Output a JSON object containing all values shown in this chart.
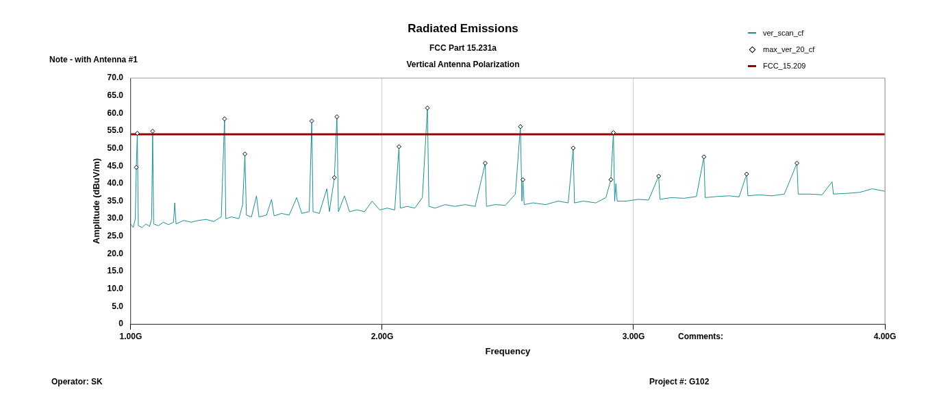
{
  "chart_data": {
    "type": "line",
    "title": "Radiated Emissions",
    "subtitle": "FCC Part 15.231a\nVertical Antenna Polarization",
    "xlabel": "Frequency",
    "ylabel": "Amplitude (dBuV/m)",
    "xlim": [
      1,
      4
    ],
    "xticks": [
      {
        "value": 1,
        "label": "1.00G"
      },
      {
        "value": 2,
        "label": "2.00G"
      },
      {
        "value": 3,
        "label": "3.00G"
      },
      {
        "value": 4,
        "label": "4.00G"
      }
    ],
    "ylim": [
      0,
      70
    ],
    "yticks": [
      0,
      {
        "value": 5,
        "label": "5.0"
      },
      {
        "value": 10,
        "label": "10.0"
      },
      {
        "value": 15,
        "label": "15.0"
      },
      {
        "value": 20,
        "label": "20.0"
      },
      {
        "value": 25,
        "label": "25.0"
      },
      {
        "value": 30,
        "label": "30.0"
      },
      {
        "value": 35,
        "label": "35.0"
      },
      {
        "value": 40,
        "label": "40.0"
      },
      {
        "value": 45,
        "label": "45.0"
      },
      {
        "value": 50,
        "label": "50.0"
      },
      {
        "value": 55,
        "label": "55.0"
      },
      {
        "value": 60,
        "label": "60.0"
      },
      {
        "value": 65,
        "label": "65.0"
      },
      {
        "value": 70,
        "label": "70.0"
      }
    ],
    "grid": "x",
    "legend": "top right",
    "series": [
      {
        "name": "ver_scan_cf",
        "color": "#1a9090",
        "x": [
          1.0,
          1.01,
          1.018,
          1.022,
          1.026,
          1.03,
          1.045,
          1.06,
          1.075,
          1.083,
          1.087,
          1.091,
          1.11,
          1.13,
          1.15,
          1.17,
          1.175,
          1.18,
          1.21,
          1.24,
          1.27,
          1.3,
          1.33,
          1.36,
          1.373,
          1.378,
          1.4,
          1.43,
          1.445,
          1.454,
          1.46,
          1.48,
          1.5,
          1.51,
          1.54,
          1.56,
          1.57,
          1.6,
          1.63,
          1.66,
          1.68,
          1.71,
          1.72,
          1.725,
          1.75,
          1.78,
          1.79,
          1.81,
          1.82,
          1.826,
          1.85,
          1.87,
          1.9,
          1.93,
          1.96,
          1.99,
          2.02,
          2.05,
          2.067,
          2.072,
          2.1,
          2.13,
          2.16,
          2.18,
          2.186,
          2.21,
          2.25,
          2.29,
          2.33,
          2.37,
          2.41,
          2.415,
          2.45,
          2.49,
          2.53,
          2.55,
          2.556,
          2.56,
          2.565,
          2.6,
          2.65,
          2.7,
          2.74,
          2.76,
          2.765,
          2.8,
          2.85,
          2.89,
          2.91,
          2.92,
          2.925,
          2.93,
          2.935,
          2.97,
          3.02,
          3.06,
          3.1,
          3.105,
          3.15,
          3.2,
          3.25,
          3.28,
          3.285,
          3.33,
          3.38,
          3.42,
          3.45,
          3.455,
          3.5,
          3.55,
          3.6,
          3.65,
          3.655,
          3.7,
          3.75,
          3.79,
          3.795,
          3.85,
          3.9,
          3.95,
          4.0
        ],
        "values": [
          28.5,
          27.5,
          30,
          44.6,
          54.3,
          28,
          27.5,
          28.5,
          27.8,
          30,
          54.9,
          28.5,
          28,
          29,
          28.3,
          29,
          34.5,
          28.5,
          29.5,
          29,
          29.5,
          29.8,
          29.2,
          30.5,
          58.4,
          30,
          30.5,
          30,
          34,
          48.4,
          31,
          30.5,
          36.5,
          30.5,
          31,
          35.5,
          30.8,
          31.5,
          31,
          36,
          31.5,
          32,
          57.8,
          32,
          31.5,
          38.5,
          32,
          41.7,
          59.0,
          32,
          36.5,
          32,
          32.5,
          32,
          35,
          32.5,
          33,
          32.5,
          50.5,
          33,
          33.5,
          33,
          36,
          61.5,
          33.5,
          33,
          34,
          33.5,
          34,
          33.5,
          45.8,
          33.5,
          34,
          33.8,
          37,
          56.2,
          35,
          41.1,
          34,
          34.5,
          34,
          35,
          34.5,
          50.1,
          34.5,
          35,
          34.5,
          36,
          41.1,
          54.5,
          35,
          40,
          35,
          35,
          35.5,
          35.3,
          42.1,
          35.5,
          36,
          35.8,
          36.3,
          47.6,
          36,
          36.3,
          36.5,
          36.2,
          42.7,
          36.5,
          36.8,
          36.5,
          37,
          45.8,
          37,
          37,
          36.8,
          40.5,
          37,
          37.2,
          37.5,
          38.5,
          37.8
        ]
      },
      {
        "name": "max_ver_20_cf",
        "type": "scatter",
        "marker": "diamond",
        "color": "#000000",
        "x": [
          1.022,
          1.026,
          1.087,
          1.373,
          1.454,
          1.72,
          1.81,
          1.82,
          2.067,
          2.18,
          2.41,
          2.55,
          2.56,
          2.76,
          2.91,
          2.92,
          3.1,
          3.28,
          3.45,
          3.65
        ],
        "values": [
          44.6,
          54.3,
          54.9,
          58.4,
          48.4,
          57.8,
          41.7,
          59.0,
          50.5,
          61.5,
          45.8,
          56.2,
          41.1,
          50.1,
          41.1,
          54.5,
          42.1,
          47.6,
          42.7,
          45.8
        ]
      },
      {
        "name": "FCC_15.209",
        "color": "#990000",
        "x": [
          1,
          4
        ],
        "values": [
          54,
          54
        ]
      }
    ],
    "annotations": [
      "Note - with Antenna #1",
      "Comments:",
      "Operator: SK",
      "Project #: G102"
    ]
  }
}
